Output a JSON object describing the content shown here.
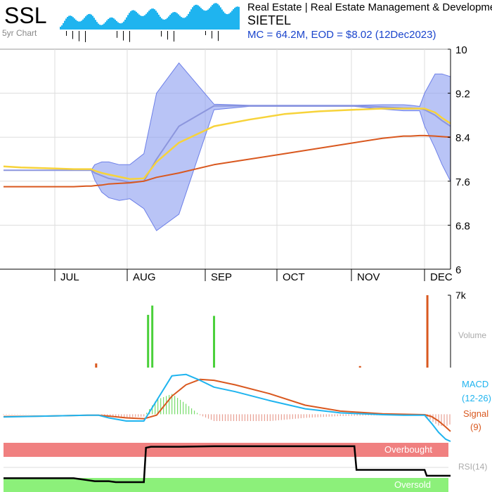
{
  "header": {
    "ticker": "SSL",
    "spark_label": "5yr Chart",
    "sector_line": "Real Estate | Real Estate Management & Development",
    "company": "SIETEL",
    "stats_line": "MC = 64.2M, EOD = $8.02 (12Dec2023)"
  },
  "colors": {
    "accent_blue": "#1a44cc",
    "spark": "#1fb4ef",
    "band": "#8a9cf0",
    "ema_short": "#f7d33a",
    "ema_long": "#d9581f",
    "price": "#8c96dd",
    "vol_up": "#4ad03a",
    "vol_down": "#d9581f",
    "macd": "#1fb4ef",
    "signal": "#d9581f",
    "overbought": "#f08080",
    "oversold": "#8cf07a",
    "rsi": "#000000"
  },
  "chart_data": [
    {
      "type": "line",
      "name": "price",
      "x_ticks": [
        "JUL",
        "AUG",
        "SEP",
        "OCT",
        "NOV",
        "DEC"
      ],
      "y_ticks": [
        10,
        9.2,
        8.4,
        7.6,
        6.8,
        6
      ],
      "ylim": [
        6,
        10
      ],
      "t": [
        0,
        25,
        50,
        75,
        100,
        118,
        125,
        130,
        140,
        150,
        165,
        180,
        200,
        218,
        250,
        300,
        350,
        400,
        450,
        500,
        540,
        570,
        580,
        593,
        600,
        615,
        625,
        637
      ],
      "series": [
        {
          "key": "price",
          "values": [
            7.8,
            7.8,
            7.8,
            7.8,
            7.8,
            7.8,
            7.8,
            7.75,
            7.7,
            7.65,
            7.62,
            7.58,
            7.6,
            8.0,
            8.6,
            8.97,
            8.97,
            8.97,
            8.97,
            8.97,
            8.95,
            8.93,
            8.93,
            8.92,
            8.9,
            8.8,
            8.7,
            8.6
          ]
        },
        {
          "key": "ema_short",
          "values": [
            7.87,
            7.85,
            7.84,
            7.83,
            7.82,
            7.82,
            7.82,
            7.79,
            7.75,
            7.72,
            7.68,
            7.64,
            7.65,
            7.95,
            8.3,
            8.6,
            8.72,
            8.82,
            8.87,
            8.9,
            8.92,
            8.92,
            8.92,
            8.92,
            8.92,
            8.85,
            8.75,
            8.65
          ]
        },
        {
          "key": "ema_long",
          "values": [
            7.5,
            7.5,
            7.5,
            7.5,
            7.5,
            7.51,
            7.51,
            7.52,
            7.53,
            7.55,
            7.56,
            7.57,
            7.6,
            7.67,
            7.75,
            7.9,
            8.0,
            8.1,
            8.2,
            8.3,
            8.38,
            8.42,
            8.42,
            8.43,
            8.43,
            8.42,
            8.41,
            8.4
          ]
        },
        {
          "key": "band_upper",
          "values": [
            7.8,
            7.8,
            7.8,
            7.8,
            7.8,
            7.8,
            7.8,
            7.9,
            7.95,
            7.95,
            7.9,
            7.9,
            8.1,
            9.2,
            9.75,
            9.0,
            8.98,
            8.98,
            8.98,
            8.98,
            8.99,
            8.99,
            8.98,
            8.96,
            9.2,
            9.55,
            9.55,
            9.5
          ]
        },
        {
          "key": "band_lower",
          "values": [
            7.8,
            7.8,
            7.8,
            7.8,
            7.8,
            7.8,
            7.8,
            7.62,
            7.4,
            7.3,
            7.25,
            7.28,
            7.1,
            6.7,
            7.0,
            8.9,
            8.96,
            8.96,
            8.96,
            8.96,
            8.91,
            8.88,
            8.88,
            8.88,
            8.6,
            8.2,
            7.9,
            7.6
          ]
        }
      ]
    },
    {
      "type": "bar",
      "name": "volume",
      "label": "Volume",
      "y_ticks": [
        "7k"
      ],
      "ylim": [
        0,
        7000
      ],
      "bars": [
        {
          "t": 132,
          "v": 400,
          "dir": "down"
        },
        {
          "t": 206,
          "v": 5100,
          "dir": "up"
        },
        {
          "t": 212,
          "v": 6000,
          "dir": "up"
        },
        {
          "t": 300,
          "v": 5000,
          "dir": "up"
        },
        {
          "t": 508,
          "v": 150,
          "dir": "down"
        },
        {
          "t": 604,
          "v": 7000,
          "dir": "down"
        }
      ]
    },
    {
      "type": "line",
      "name": "macd",
      "labels": {
        "macd": "MACD",
        "macd_params": "(12-26)",
        "signal": "Signal",
        "signal_params": "(9)"
      },
      "ylim": [
        -0.6,
        1.0
      ],
      "t": [
        0,
        60,
        120,
        135,
        150,
        175,
        200,
        218,
        240,
        260,
        280,
        300,
        330,
        380,
        430,
        480,
        540,
        570,
        600,
        610,
        620,
        630,
        637
      ],
      "series": [
        {
          "key": "macd",
          "values": [
            -0.06,
            -0.04,
            -0.02,
            -0.02,
            -0.08,
            -0.15,
            -0.15,
            0.3,
            0.85,
            0.88,
            0.75,
            0.6,
            0.5,
            0.3,
            0.12,
            0.03,
            -0.01,
            -0.02,
            -0.02,
            -0.2,
            -0.4,
            -0.55,
            -0.6
          ]
        },
        {
          "key": "signal",
          "values": [
            -0.05,
            -0.04,
            -0.02,
            -0.02,
            -0.04,
            -0.08,
            -0.1,
            -0.02,
            0.4,
            0.65,
            0.77,
            0.75,
            0.65,
            0.45,
            0.2,
            0.07,
            0.01,
            0.0,
            -0.01,
            -0.05,
            -0.15,
            -0.28,
            -0.38
          ]
        }
      ]
    },
    {
      "type": "line",
      "name": "rsi",
      "label": "RSI(14)",
      "zones": {
        "overbought": "Overbought",
        "oversold": "Oversold"
      },
      "ylim": [
        0,
        100
      ],
      "t": [
        0,
        100,
        130,
        150,
        160,
        200,
        203,
        210,
        250,
        300,
        350,
        400,
        450,
        500,
        503,
        510,
        600,
        603,
        637
      ],
      "values": [
        28,
        28,
        22,
        22,
        20,
        20,
        90,
        92,
        92,
        93,
        93,
        93,
        93,
        93,
        45,
        45,
        45,
        33,
        33
      ]
    }
  ]
}
